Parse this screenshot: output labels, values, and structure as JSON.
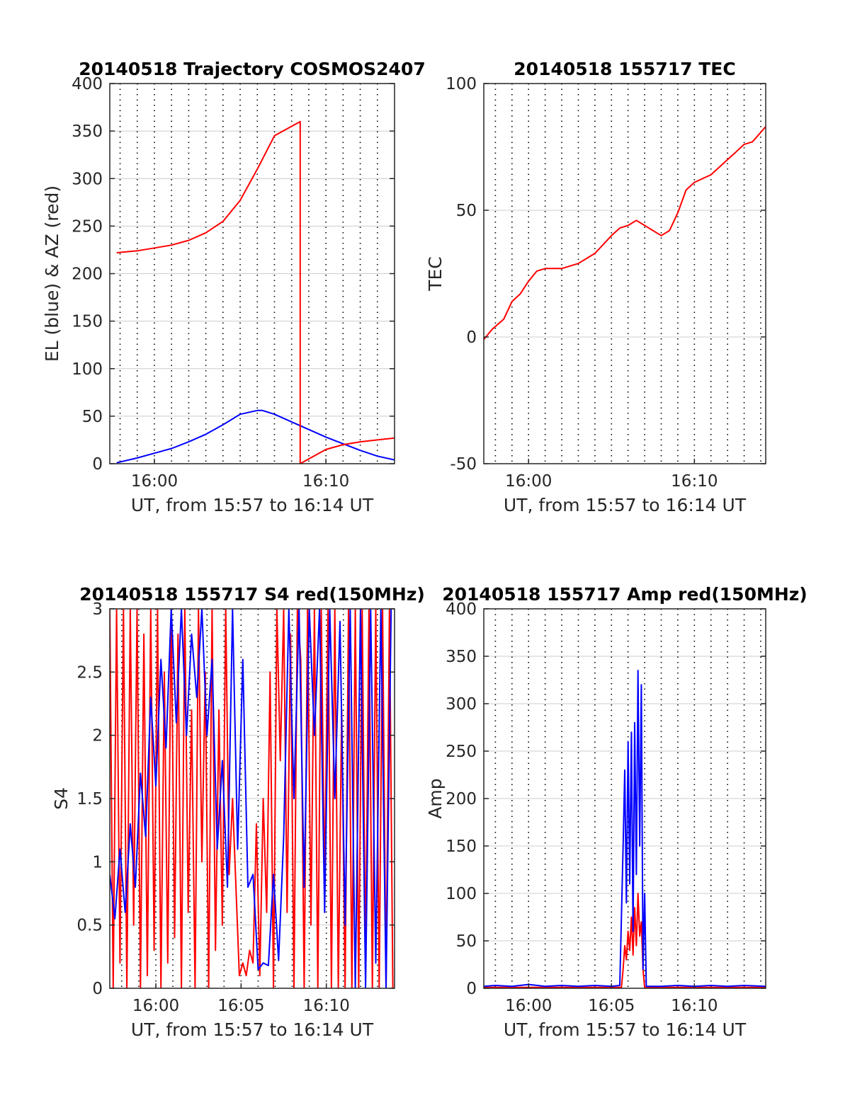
{
  "figure": {
    "background": "#ffffff",
    "colors": {
      "red": "#ff0000",
      "blue": "#0000ff",
      "axis": "#262626",
      "grid": "#cccccc"
    }
  },
  "chart_data": [
    {
      "id": "traj",
      "type": "line",
      "title": "20140518 Trajectory COSMOS2407",
      "xlabel": "UT, from 15:57 to 16:14 UT",
      "ylabel": "EL (blue) & AZ (red)",
      "x_unit": "minutes after 15:57 UT",
      "xlim": [
        0.4,
        17.0
      ],
      "ylim": [
        0,
        400
      ],
      "yticks": [
        0,
        50,
        100,
        150,
        200,
        250,
        300,
        350,
        400
      ],
      "ytick_labels": [
        "0",
        "50",
        "100",
        "150",
        "200",
        "250",
        "300",
        "350",
        "400"
      ],
      "xticks": [
        3,
        13
      ],
      "xtick_labels": [
        "16:00",
        "16:10"
      ],
      "minor_x_gridlines": [
        1,
        2,
        3,
        4,
        5,
        6,
        7,
        8,
        9,
        10,
        11,
        12,
        13,
        14,
        15,
        16
      ],
      "grid": true,
      "series": [
        {
          "color": "#0000ff",
          "x": [
            0.8,
            2,
            3,
            4,
            5,
            6,
            7,
            8,
            9,
            9.3,
            10,
            11,
            12,
            13,
            14,
            15,
            16,
            17
          ],
          "y": [
            1,
            6,
            11,
            16,
            23,
            31,
            41,
            52,
            56,
            56,
            52,
            44,
            36,
            28,
            21,
            14,
            8,
            4
          ]
        },
        {
          "color": "#ff0000",
          "x": [
            0.8,
            2,
            3,
            4,
            5,
            6,
            7,
            8,
            9,
            10,
            11,
            11.5,
            11.5,
            12,
            13,
            14,
            15,
            16,
            17
          ],
          "y": [
            222,
            224,
            227,
            230,
            235,
            243,
            255,
            277,
            310,
            345,
            355,
            360,
            0,
            5,
            15,
            20,
            23,
            25,
            27
          ]
        }
      ]
    },
    {
      "id": "tec",
      "type": "line",
      "title": "20140518 155717 TEC",
      "xlabel": "UT, from 15:57 to 16:14 UT",
      "ylabel": "TEC",
      "x_unit": "minutes after 15:57 UT",
      "xlim": [
        0.3,
        17.3
      ],
      "ylim": [
        -50,
        100
      ],
      "yticks": [
        -50,
        0,
        50,
        100
      ],
      "ytick_labels": [
        "-50",
        "0",
        "50",
        "100"
      ],
      "xticks": [
        3,
        13
      ],
      "xtick_labels": [
        "16:00",
        "16:10"
      ],
      "minor_x_gridlines": [
        1,
        2,
        3,
        4,
        5,
        6,
        7,
        8,
        9,
        10,
        11,
        12,
        13,
        14,
        15,
        16,
        17
      ],
      "grid": true,
      "series": [
        {
          "color": "#ff0000",
          "x": [
            0.3,
            0.8,
            1.5,
            2,
            2.5,
            3,
            3.5,
            4,
            5,
            6,
            6.5,
            7,
            8,
            8.5,
            9,
            9.5,
            10,
            11,
            11.5,
            12,
            12.5,
            13,
            14,
            15,
            15.5,
            16,
            16.5,
            17.3
          ],
          "y": [
            -1,
            3,
            7,
            14,
            17,
            22,
            26,
            27,
            27,
            29,
            31,
            33,
            40,
            43,
            44,
            46,
            44,
            40,
            42,
            49,
            58,
            61,
            64,
            70,
            73,
            76,
            77,
            83
          ]
        }
      ]
    },
    {
      "id": "s4",
      "type": "line",
      "title": "20140518 155717 S4 red(150MHz)",
      "xlabel": "UT, from 15:57 to 16:14 UT",
      "ylabel": "S4",
      "x_unit": "minutes after 15:57 UT",
      "xlim": [
        0.3,
        17.0
      ],
      "ylim": [
        0,
        3
      ],
      "yticks": [
        0,
        0.5,
        1,
        1.5,
        2,
        2.5,
        3
      ],
      "ytick_labels": [
        "0",
        "0.5",
        "1",
        "1.5",
        "2",
        "2.5",
        "3"
      ],
      "xticks": [
        3,
        8,
        13
      ],
      "xtick_labels": [
        "16:00",
        "16:05",
        "16:10"
      ],
      "minor_x_gridlines": [
        1,
        2,
        3,
        4,
        5,
        6,
        7,
        8,
        9,
        10,
        11,
        12,
        13,
        14,
        15,
        16
      ],
      "grid": true,
      "series": [
        {
          "color": "#ff0000",
          "x": [
            0.3,
            0.5,
            0.7,
            0.9,
            1.1,
            1.3,
            1.5,
            1.7,
            1.9,
            2.1,
            2.3,
            2.5,
            2.7,
            2.9,
            3.1,
            3.3,
            3.5,
            3.7,
            3.9,
            4.1,
            4.3,
            4.5,
            4.7,
            4.9,
            5.1,
            5.3,
            5.5,
            5.7,
            5.9,
            6.1,
            6.3,
            6.5,
            6.7,
            6.9,
            7.1,
            7.3,
            7.5,
            7.7,
            7.9,
            8.1,
            8.3,
            8.5,
            8.7,
            8.9,
            9.1,
            9.3,
            9.5,
            9.7,
            9.9,
            10.1,
            10.3,
            10.5,
            10.7,
            10.9,
            11.1,
            11.3,
            11.5,
            11.7,
            11.9,
            12.1,
            12.3,
            12.5,
            12.7,
            12.9,
            13.1,
            13.3,
            13.5,
            13.7,
            13.9,
            14.1,
            14.3,
            14.5,
            14.7,
            14.9,
            15.1,
            15.3,
            15.5,
            15.7,
            15.9,
            16.1,
            16.3,
            16.5,
            16.7,
            16.9
          ],
          "y": [
            3,
            0,
            3,
            0.2,
            3,
            0,
            3,
            0.5,
            3,
            0,
            2.8,
            0.1,
            3,
            0.3,
            3,
            0,
            2.5,
            0.2,
            3,
            0.4,
            2.8,
            0,
            3,
            0.6,
            2.2,
            0,
            3,
            1,
            2.5,
            0,
            3,
            0.3,
            2.2,
            0.5,
            3,
            0.9,
            1.5,
            0.8,
            0.1,
            0.2,
            0.1,
            0.3,
            0.2,
            1.3,
            0.1,
            1.5,
            0.6,
            2.5,
            0,
            3,
            1.8,
            3,
            0.6,
            2.8,
            0,
            3,
            2.6,
            0,
            3,
            0.5,
            3,
            0,
            3,
            0.8,
            3,
            0,
            3,
            0,
            2.2,
            0,
            3,
            0,
            3,
            0,
            3,
            0.2,
            3,
            0,
            3,
            0,
            3,
            0,
            3,
            0
          ]
        },
        {
          "color": "#0000ff",
          "x": [
            0.3,
            0.6,
            0.9,
            1.2,
            1.5,
            1.8,
            2.1,
            2.4,
            2.7,
            3.0,
            3.3,
            3.6,
            3.9,
            4.2,
            4.5,
            4.8,
            5.1,
            5.4,
            5.7,
            6.0,
            6.3,
            6.6,
            6.9,
            7.2,
            7.5,
            7.8,
            8.1,
            8.4,
            8.7,
            9.0,
            9.3,
            9.6,
            9.9,
            10.2,
            10.5,
            10.8,
            11.1,
            11.4,
            11.7,
            12.0,
            12.3,
            12.6,
            12.9,
            13.2,
            13.5,
            13.8,
            14.1,
            14.4,
            14.7,
            15.0,
            15.3,
            15.6,
            15.9,
            16.2,
            16.5,
            16.8
          ],
          "y": [
            0.9,
            0.55,
            1.1,
            0.6,
            1.3,
            0.8,
            1.7,
            1.2,
            2.3,
            1.6,
            2.6,
            1.9,
            3,
            2.1,
            3,
            2.0,
            2.8,
            2.3,
            3,
            2.0,
            2.6,
            1.1,
            1.8,
            0.8,
            3,
            1.1,
            2.6,
            0.8,
            0.9,
            0.15,
            0.2,
            0.18,
            0.9,
            0.22,
            1.2,
            3,
            1.5,
            3,
            0.8,
            3,
            2.0,
            3,
            0.6,
            3,
            1.5,
            2.9,
            0.5,
            3,
            0,
            3,
            0,
            3,
            0.2,
            3,
            0,
            3
          ]
        }
      ]
    },
    {
      "id": "amp",
      "type": "line",
      "title": "20140518 155717 Amp red(150MHz)",
      "xlabel": "UT, from 15:57 to 16:14 UT",
      "ylabel": "Amp",
      "x_unit": "minutes after 15:57 UT",
      "xlim": [
        0.3,
        17.3
      ],
      "ylim": [
        0,
        400
      ],
      "yticks": [
        0,
        50,
        100,
        150,
        200,
        250,
        300,
        350,
        400
      ],
      "ytick_labels": [
        "0",
        "50",
        "100",
        "150",
        "200",
        "250",
        "300",
        "350",
        "400"
      ],
      "xticks": [
        3,
        8,
        13
      ],
      "xtick_labels": [
        "16:00",
        "16:05",
        "16:10"
      ],
      "minor_x_gridlines": [
        1,
        2,
        3,
        4,
        5,
        6,
        7,
        8,
        9,
        10,
        11,
        12,
        13,
        14,
        15,
        16,
        17
      ],
      "grid": true,
      "series": [
        {
          "color": "#ff0000",
          "x": [
            0.3,
            8.6,
            8.7,
            8.8,
            8.9,
            9.0,
            9.1,
            9.2,
            9.3,
            9.4,
            9.5,
            9.6,
            9.7,
            9.8,
            9.9,
            10.0,
            17.3
          ],
          "y": [
            1,
            1,
            20,
            45,
            30,
            60,
            40,
            75,
            35,
            85,
            45,
            100,
            55,
            70,
            20,
            1,
            1
          ]
        },
        {
          "color": "#0000ff",
          "x": [
            0.3,
            1,
            2,
            3,
            4,
            5,
            6,
            7,
            8,
            8.5,
            8.7,
            8.8,
            8.9,
            9.0,
            9.1,
            9.2,
            9.3,
            9.4,
            9.5,
            9.6,
            9.7,
            9.8,
            9.9,
            10.0,
            10.1,
            11,
            12,
            13,
            14,
            15,
            16,
            17.3
          ],
          "y": [
            2,
            3,
            2,
            4,
            2,
            3,
            2,
            3,
            2,
            3,
            150,
            230,
            90,
            260,
            110,
            270,
            60,
            280,
            120,
            335,
            150,
            320,
            20,
            100,
            2,
            2,
            3,
            2,
            3,
            2,
            3,
            2
          ]
        }
      ]
    }
  ]
}
